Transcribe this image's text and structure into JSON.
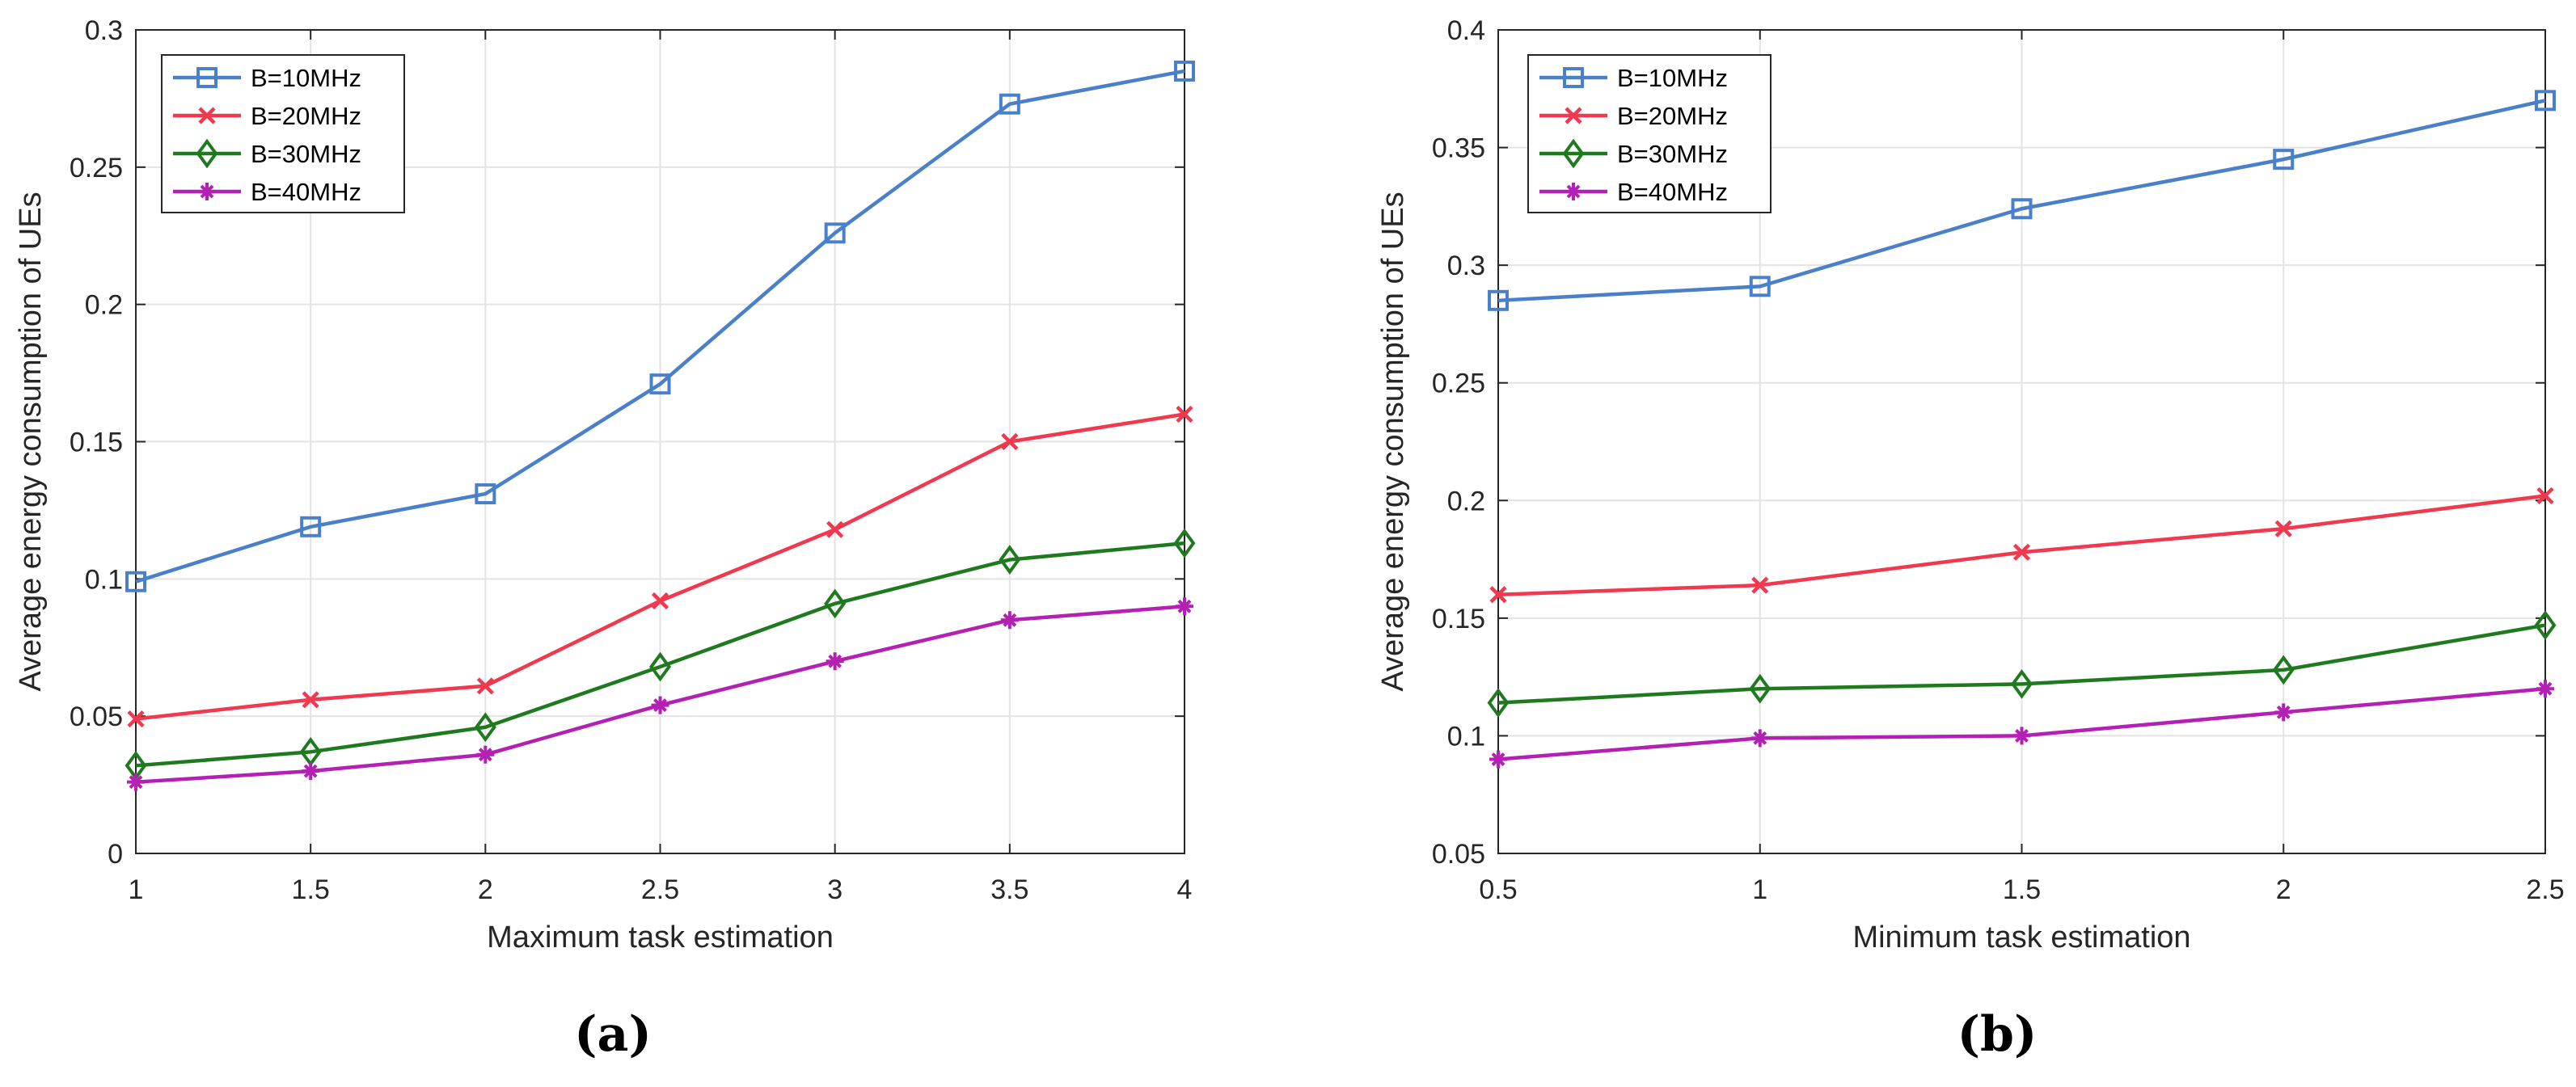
{
  "chart_data": [
    {
      "type": "line",
      "panel_label": "(a)",
      "xlabel": "Maximum task estimation",
      "ylabel": "Average energy consumption of UEs",
      "x": [
        1,
        1.5,
        2,
        2.5,
        3,
        3.5,
        4
      ],
      "xticks": [
        1,
        1.5,
        2,
        2.5,
        3,
        3.5,
        4
      ],
      "xtick_labels": [
        "1",
        "1.5",
        "2",
        "2.5",
        "3",
        "3.5",
        "4"
      ],
      "yticks": [
        0,
        0.05,
        0.1,
        0.15,
        0.2,
        0.25,
        0.3
      ],
      "ytick_labels": [
        "0",
        "0.05",
        "0.1",
        "0.15",
        "0.2",
        "0.25",
        "0.3"
      ],
      "xlim": [
        1,
        4
      ],
      "ylim": [
        0,
        0.3
      ],
      "grid": true,
      "legend_position": "top-left",
      "series": [
        {
          "name": "B=10MHz",
          "marker": "square",
          "color": "#4a7fca",
          "values": [
            0.099,
            0.119,
            0.131,
            0.171,
            0.226,
            0.273,
            0.285
          ]
        },
        {
          "name": "B=20MHz",
          "marker": "x",
          "color": "#f0394f",
          "values": [
            0.049,
            0.056,
            0.061,
            0.092,
            0.118,
            0.15,
            0.16
          ]
        },
        {
          "name": "B=30MHz",
          "marker": "diamond",
          "color": "#1f7a1f",
          "values": [
            0.032,
            0.037,
            0.046,
            0.068,
            0.091,
            0.107,
            0.113
          ]
        },
        {
          "name": "B=40MHz",
          "marker": "asterisk",
          "color": "#b41fb4",
          "values": [
            0.026,
            0.03,
            0.036,
            0.054,
            0.07,
            0.085,
            0.09
          ]
        }
      ]
    },
    {
      "type": "line",
      "panel_label": "(b)",
      "xlabel": "Minimum task estimation",
      "ylabel": "Average energy consumption of UEs",
      "x": [
        0.5,
        1,
        1.5,
        2,
        2.5
      ],
      "xticks": [
        0.5,
        1,
        1.5,
        2,
        2.5
      ],
      "xtick_labels": [
        "0.5",
        "1",
        "1.5",
        "2",
        "2.5"
      ],
      "yticks": [
        0.05,
        0.1,
        0.15,
        0.2,
        0.25,
        0.3,
        0.35,
        0.4
      ],
      "ytick_labels": [
        "0.05",
        "0.1",
        "0.15",
        "0.2",
        "0.25",
        "0.3",
        "0.35",
        "0.4"
      ],
      "xlim": [
        0.5,
        2.5
      ],
      "ylim": [
        0.05,
        0.4
      ],
      "grid": true,
      "legend_position": "top-left",
      "series": [
        {
          "name": "B=10MHz",
          "marker": "square",
          "color": "#4a7fca",
          "values": [
            0.285,
            0.291,
            0.324,
            0.345,
            0.37
          ]
        },
        {
          "name": "B=20MHz",
          "marker": "x",
          "color": "#f0394f",
          "values": [
            0.16,
            0.164,
            0.178,
            0.188,
            0.202
          ]
        },
        {
          "name": "B=30MHz",
          "marker": "diamond",
          "color": "#1f7a1f",
          "values": [
            0.114,
            0.12,
            0.122,
            0.128,
            0.147
          ]
        },
        {
          "name": "B=40MHz",
          "marker": "asterisk",
          "color": "#b41fb4",
          "values": [
            0.09,
            0.099,
            0.1,
            0.11,
            0.12
          ]
        }
      ]
    }
  ]
}
